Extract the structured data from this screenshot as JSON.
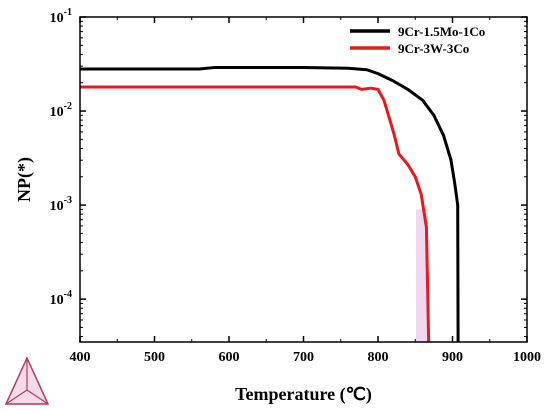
{
  "chart_data": {
    "type": "line",
    "title": "",
    "xlabel": "Temperature (℃)",
    "ylabel": "NP(*)",
    "xlim": [
      400,
      1000
    ],
    "ylim": [
      3.5e-05,
      0.1
    ],
    "yscale": "log",
    "x_ticks": [
      400,
      500,
      600,
      700,
      800,
      900,
      1000
    ],
    "x_tick_labels": [
      "400",
      "500",
      "600",
      "700",
      "800",
      "900",
      "1000"
    ],
    "y_ticks": [
      0.0001,
      0.001,
      0.01,
      0.1
    ],
    "y_tick_labels": [
      {
        "base": "10",
        "exp": "-4"
      },
      {
        "base": "10",
        "exp": "-3"
      },
      {
        "base": "10",
        "exp": "-2"
      },
      {
        "base": "10",
        "exp": "-1"
      }
    ],
    "grid": false,
    "legend_position": "top-right",
    "series": [
      {
        "name": "9Cr-1.5Mo-1Co",
        "color": "#000000",
        "points": [
          [
            400,
            0.028
          ],
          [
            500,
            0.028
          ],
          [
            560,
            0.028
          ],
          [
            580,
            0.029
          ],
          [
            700,
            0.029
          ],
          [
            760,
            0.0285
          ],
          [
            785,
            0.0275
          ],
          [
            800,
            0.025
          ],
          [
            820,
            0.021
          ],
          [
            840,
            0.017
          ],
          [
            860,
            0.013
          ],
          [
            875,
            0.009
          ],
          [
            888,
            0.0055
          ],
          [
            898,
            0.003
          ],
          [
            903,
            0.0017
          ],
          [
            907,
            0.001
          ],
          [
            907.5,
            3.5e-05
          ]
        ]
      },
      {
        "name": "9Cr-3W-3Co",
        "color": "#e8191d",
        "points": [
          [
            400,
            0.018
          ],
          [
            600,
            0.018
          ],
          [
            770,
            0.018
          ],
          [
            778,
            0.017
          ],
          [
            790,
            0.0175
          ],
          [
            800,
            0.017
          ],
          [
            808,
            0.013
          ],
          [
            816,
            0.008
          ],
          [
            822,
            0.0055
          ],
          [
            828,
            0.0035
          ],
          [
            840,
            0.0027
          ],
          [
            850,
            0.002
          ],
          [
            858,
            0.0013
          ],
          [
            865,
            0.00058
          ],
          [
            868,
            3.5e-05
          ]
        ]
      }
    ],
    "highlight_band": {
      "x": [
        851,
        867
      ],
      "y_top": 0.0009,
      "color": "#f0d8f0"
    }
  },
  "logo_name": "triangle-logo-icon"
}
